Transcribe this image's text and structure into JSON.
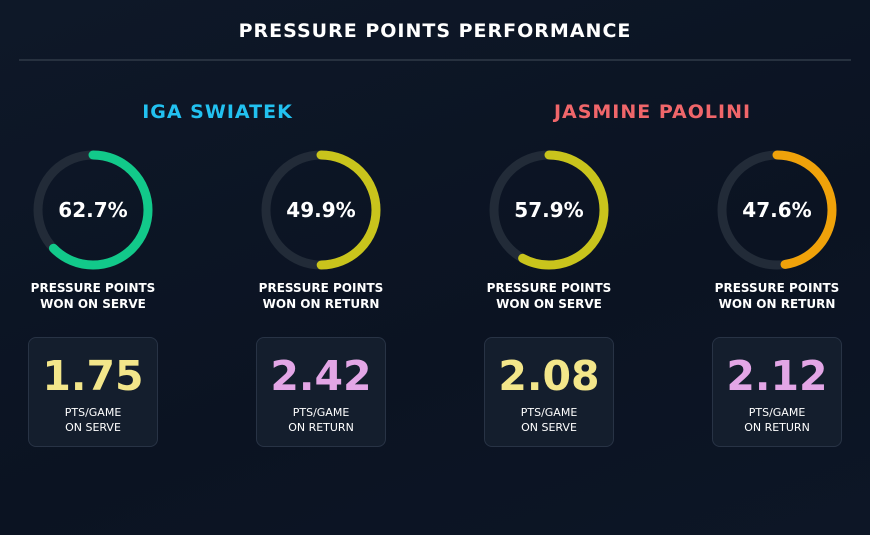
{
  "title": "PRESSURE POINTS PERFORMANCE",
  "colors": {
    "ring_track": "#222b38",
    "green": "#12c98a",
    "yellow": "#c9c41c",
    "amber": "#f0a20a",
    "swiatek": "#22c1f0",
    "paolini": "#f0666a",
    "stat_yellow": "#f3e68a",
    "stat_pink": "#e3a6e6"
  },
  "players": [
    {
      "name": "IGA SWIATEK",
      "color": "#22c1f0",
      "rings": [
        {
          "value_label": "62.7%",
          "percent": 62.7,
          "color": "#12c98a",
          "label_line1": "PRESSURE POINTS",
          "label_line2": "WON ON SERVE"
        },
        {
          "value_label": "49.9%",
          "percent": 49.9,
          "color": "#c9c41c",
          "label_line1": "PRESSURE POINTS",
          "label_line2": "WON ON RETURN"
        }
      ],
      "stats": [
        {
          "value": "1.75",
          "color": "#f3e68a",
          "label_line1": "PTS/GAME",
          "label_line2": "ON SERVE"
        },
        {
          "value": "2.42",
          "color": "#e3a6e6",
          "label_line1": "PTS/GAME",
          "label_line2": "ON RETURN"
        }
      ]
    },
    {
      "name": "JASMINE PAOLINI",
      "color": "#f0666a",
      "rings": [
        {
          "value_label": "57.9%",
          "percent": 57.9,
          "color": "#c9c41c",
          "label_line1": "PRESSURE POINTS",
          "label_line2": "WON ON SERVE"
        },
        {
          "value_label": "47.6%",
          "percent": 47.6,
          "color": "#f0a20a",
          "label_line1": "PRESSURE POINTS",
          "label_line2": "WON ON RETURN"
        }
      ],
      "stats": [
        {
          "value": "2.08",
          "color": "#f3e68a",
          "label_line1": "PTS/GAME",
          "label_line2": "ON SERVE"
        },
        {
          "value": "2.12",
          "color": "#e3a6e6",
          "label_line1": "PTS/GAME",
          "label_line2": "ON RETURN"
        }
      ]
    }
  ]
}
